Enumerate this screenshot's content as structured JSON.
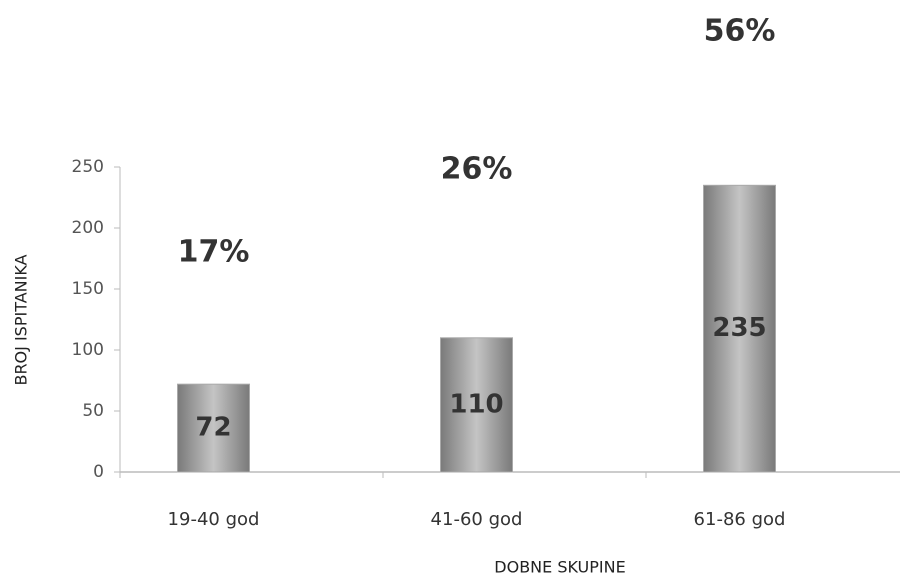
{
  "chart_data": {
    "type": "bar",
    "categories": [
      "19-40 god",
      "41-60 god",
      "61-86 god"
    ],
    "values": [
      72,
      110,
      235
    ],
    "annotations": [
      "17%",
      "26%",
      "56%"
    ],
    "color": "#a9a9a9",
    "ylim": [
      0,
      250
    ],
    "yticks": [
      0,
      50,
      100,
      150,
      200,
      250
    ],
    "xlabel": "DOBNE SKUPINE",
    "ylabel": "BROJ ISPITANIKA",
    "grid": false
  }
}
